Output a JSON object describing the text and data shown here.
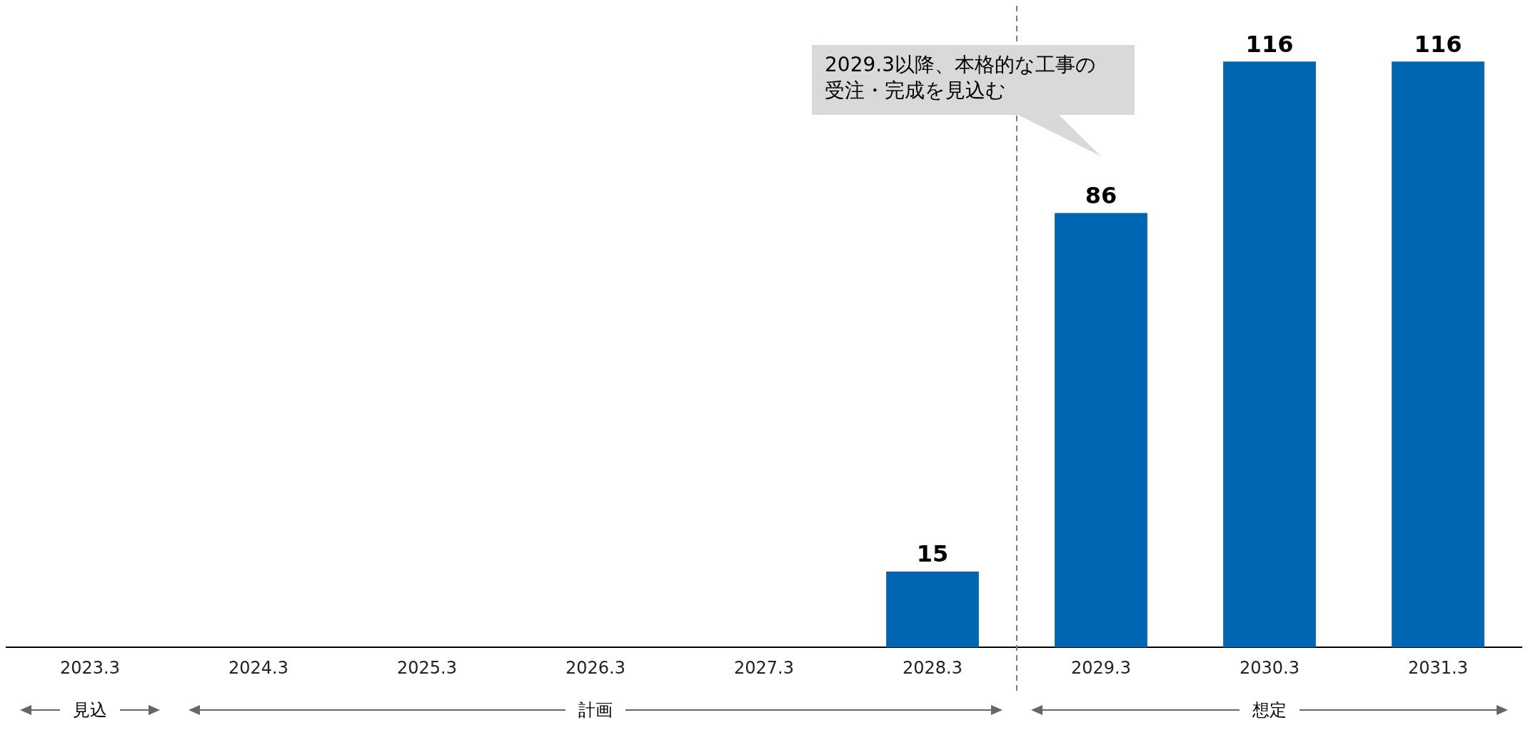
{
  "chart_data": {
    "type": "bar",
    "categories": [
      "2023.3",
      "2024.3",
      "2025.3",
      "2026.3",
      "2027.3",
      "2028.3",
      "2029.3",
      "2030.3",
      "2031.3"
    ],
    "values": [
      null,
      null,
      null,
      null,
      null,
      15,
      86,
      116,
      116
    ],
    "color": "#0066b3",
    "data_labels": true,
    "grid": false,
    "legend": false,
    "annotations": [
      "2029.3以降、本格的な工事の受注・完成を見込む",
      "見込",
      "計画",
      "想定"
    ]
  }
}
